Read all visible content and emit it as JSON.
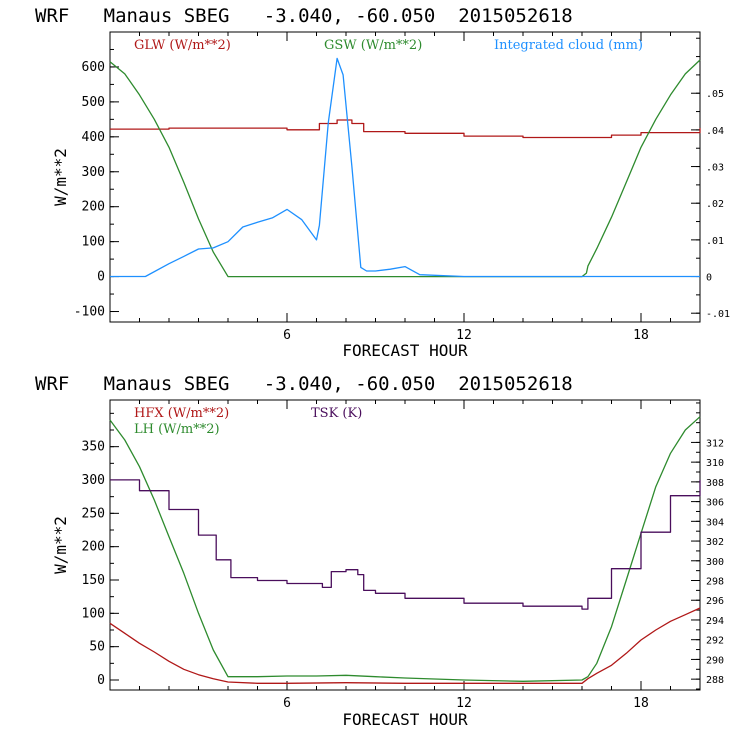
{
  "chart_data": [
    {
      "type": "line",
      "title": "WRF   Manaus SBEG   -3.040, -60.050  2015052618",
      "xlabel": "FORECAST HOUR",
      "ylabel": "W/m**2",
      "xlim": [
        0,
        20
      ],
      "ylim": [
        -130,
        700
      ],
      "x_ticks": [
        6,
        12,
        18
      ],
      "x_tick_labels": [
        "6",
        "12",
        "18"
      ],
      "y_ticks": [
        -100,
        0,
        100,
        200,
        300,
        400,
        500,
        600
      ],
      "y_tick_labels": [
        "-100",
        "0",
        "100",
        "200",
        "300",
        "400",
        "500",
        "600"
      ],
      "y2lim": [
        -0.0124,
        0.0667
      ],
      "y2_ticks": [
        -0.01,
        0,
        0.01,
        0.02,
        0.03,
        0.04,
        0.05
      ],
      "y2_tick_labels": [
        "-.01",
        "0",
        ".01",
        ".02",
        ".03",
        ".04",
        ".05"
      ],
      "series": [
        {
          "name": "GLW (W/m**2)",
          "axis": "left",
          "color": "#b01818",
          "step": true,
          "x": [
            0,
            2,
            4,
            6,
            7.1,
            7.7,
            8.2,
            8.6,
            10,
            12,
            14,
            16,
            17,
            18,
            20
          ],
          "y": [
            422,
            425,
            425,
            420,
            438,
            448,
            438,
            415,
            410,
            402,
            398,
            398,
            405,
            412,
            425
          ]
        },
        {
          "name": "GSW (W/m**2)",
          "axis": "left",
          "color": "#2e8b2e",
          "step": false,
          "x": [
            0,
            0.5,
            1,
            1.5,
            2,
            2.5,
            3,
            3.5,
            4,
            6,
            8,
            10,
            12,
            14,
            16,
            16.15,
            16.2,
            16.5,
            17,
            17.5,
            18,
            18.5,
            19,
            19.5,
            20
          ],
          "y": [
            615,
            580,
            520,
            450,
            370,
            270,
            165,
            70,
            0,
            0,
            0,
            0,
            0,
            0,
            0,
            10,
            30,
            80,
            170,
            270,
            370,
            450,
            520,
            580,
            620
          ]
        },
        {
          "name": "Integrated cloud (mm)",
          "axis": "right",
          "color": "#1e90ff",
          "step": false,
          "x": [
            0,
            1,
            1.2,
            2,
            2.5,
            3,
            3.5,
            4,
            4.5,
            5,
            5.5,
            6,
            6.5,
            7,
            7.1,
            7.4,
            7.7,
            7.9,
            8.2,
            8.5,
            8.7,
            9,
            9.5,
            10,
            10.5,
            12,
            14,
            16,
            18,
            20
          ],
          "y": [
            0,
            0,
            0,
            0.0035,
            0.0055,
            0.0075,
            0.0078,
            0.0095,
            0.0135,
            0.0148,
            0.016,
            0.0183,
            0.0155,
            0.01,
            0.014,
            0.042,
            0.0595,
            0.055,
            0.03,
            0.0025,
            0.0015,
            0.0015,
            0.002,
            0.0027,
            0.0005,
            0,
            0,
            0,
            0,
            0
          ]
        }
      ]
    },
    {
      "type": "line",
      "title": "WRF   Manaus SBEG   -3.040, -60.050  2015052618",
      "xlabel": "FORECAST HOUR",
      "ylabel": "W/m**2",
      "xlim": [
        0,
        20
      ],
      "ylim": [
        -15,
        420
      ],
      "x_ticks": [
        6,
        12,
        18
      ],
      "x_tick_labels": [
        "6",
        "12",
        "18"
      ],
      "y_ticks": [
        0,
        50,
        100,
        150,
        200,
        250,
        300,
        350
      ],
      "y_tick_labels": [
        "0",
        "50",
        "100",
        "150",
        "200",
        "250",
        "300",
        "350"
      ],
      "y2lim": [
        286.9,
        316.3
      ],
      "y2_ticks": [
        288,
        290,
        292,
        294,
        296,
        298,
        300,
        302,
        304,
        306,
        308,
        310,
        312
      ],
      "y2_tick_labels": [
        "288",
        "290",
        "292",
        "294",
        "296",
        "298",
        "300",
        "302",
        "304",
        "306",
        "308",
        "310",
        "312"
      ],
      "series": [
        {
          "name": "HFX (W/m**2)",
          "axis": "left",
          "color": "#b01818",
          "step": false,
          "x": [
            0,
            0.5,
            1,
            1.5,
            2,
            2.5,
            3,
            3.5,
            4,
            5,
            6,
            8,
            10,
            12,
            14,
            16,
            16.2,
            16.5,
            17,
            17.5,
            18,
            18.5,
            19,
            19.5,
            20
          ],
          "y": [
            85,
            70,
            55,
            42,
            28,
            16,
            8,
            2,
            -3,
            -5,
            -5,
            -4,
            -5,
            -5,
            -5,
            -5,
            2,
            10,
            22,
            40,
            60,
            75,
            88,
            98,
            108
          ]
        },
        {
          "name": "LH (W/m**2)",
          "axis": "left",
          "color": "#2e8b2e",
          "step": false,
          "x": [
            0,
            0.5,
            1,
            1.5,
            2,
            2.5,
            3,
            3.5,
            4,
            5,
            6,
            7,
            8,
            9,
            10,
            12,
            14,
            16,
            16.2,
            16.5,
            17,
            17.5,
            18,
            18.5,
            19,
            19.5,
            20
          ],
          "y": [
            390,
            360,
            320,
            270,
            215,
            160,
            100,
            45,
            5,
            5,
            6,
            6,
            7,
            5,
            3,
            0,
            -2,
            0,
            5,
            25,
            80,
            150,
            220,
            290,
            340,
            375,
            395
          ]
        },
        {
          "name": "TSK (K)",
          "axis": "right",
          "color": "#4a0e5c",
          "step": true,
          "x": [
            0,
            1,
            2,
            3,
            3.6,
            4.1,
            5,
            6,
            7.2,
            7.5,
            8,
            8.4,
            8.6,
            9,
            10,
            12,
            14,
            16,
            16.2,
            17,
            18,
            19,
            20
          ],
          "y": [
            308.2,
            307.1,
            305.2,
            302.6,
            300.1,
            298.3,
            298.0,
            297.7,
            297.3,
            298.9,
            299.1,
            298.6,
            297.0,
            296.7,
            296.2,
            295.7,
            295.4,
            295.1,
            296.2,
            299.2,
            302.9,
            306.6,
            308.2
          ]
        }
      ]
    }
  ]
}
